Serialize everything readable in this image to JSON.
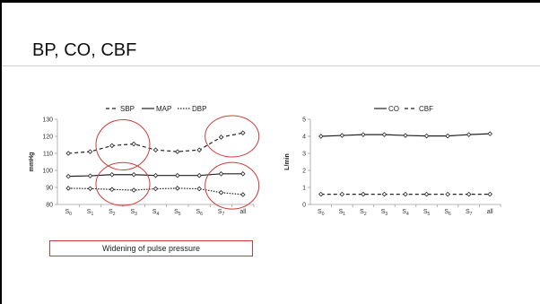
{
  "slide": {
    "title": "BP, CO, CBF",
    "annotation": "Widening of pulse pressure"
  },
  "colors": {
    "line": "#222222",
    "axis": "#a0a0a0",
    "highlight": "#d03a3a"
  },
  "chart_data": [
    {
      "type": "line",
      "categories": [
        "S0",
        "S1",
        "S2",
        "S3",
        "S4",
        "S5",
        "S6",
        "S7",
        "all"
      ],
      "ylabel": "mmHg",
      "ylim": [
        80,
        130
      ],
      "yticks": [
        80,
        90,
        100,
        110,
        120,
        130
      ],
      "legend_position": "top",
      "series": [
        {
          "name": "SBP",
          "style": "dashed",
          "values": [
            110,
            111,
            114.5,
            115.5,
            112,
            111,
            112,
            119.5,
            122
          ]
        },
        {
          "name": "MAP",
          "style": "solid",
          "values": [
            96.5,
            96.8,
            97.5,
            97.5,
            97,
            97,
            97,
            98,
            98
          ]
        },
        {
          "name": "DBP",
          "style": "dotted",
          "values": [
            89.5,
            89.3,
            88.8,
            88.4,
            89.2,
            89.5,
            89.2,
            87,
            85.8
          ]
        }
      ],
      "highlight_circles": [
        {
          "around": "S2-S3",
          "series": "SBP"
        },
        {
          "around": "S7-all",
          "series": "SBP"
        },
        {
          "around": "S2-S3",
          "series": "MAP/DBP"
        },
        {
          "around": "S7-all",
          "series": "MAP/DBP"
        }
      ]
    },
    {
      "type": "line",
      "categories": [
        "S0",
        "S1",
        "S2",
        "S3",
        "S4",
        "S5",
        "S6",
        "S7",
        "all"
      ],
      "ylabel": "L/min",
      "ylim": [
        0,
        5
      ],
      "yticks": [
        0,
        1,
        2,
        3,
        4,
        5
      ],
      "legend_position": "top",
      "series": [
        {
          "name": "CO",
          "style": "solid",
          "values": [
            4.0,
            4.05,
            4.1,
            4.1,
            4.05,
            4.02,
            4.02,
            4.1,
            4.15
          ]
        },
        {
          "name": "CBF",
          "style": "dashed",
          "values": [
            0.6,
            0.6,
            0.6,
            0.6,
            0.6,
            0.6,
            0.6,
            0.6,
            0.6
          ]
        }
      ]
    }
  ]
}
